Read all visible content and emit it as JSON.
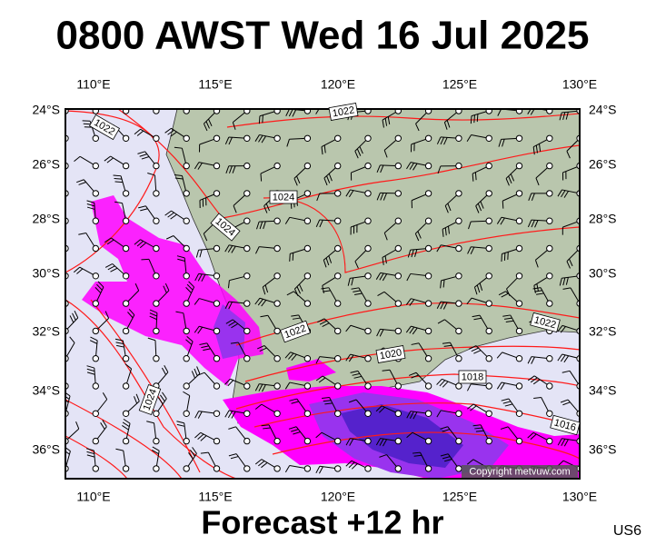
{
  "header": {
    "title": "0800 AWST Wed 16 Jul 2025"
  },
  "map": {
    "lon_labels": [
      "110°E",
      "115°E",
      "120°E",
      "125°E",
      "130°E"
    ],
    "lat_labels": [
      "24°S",
      "26°S",
      "28°S",
      "30°S",
      "32°S",
      "34°S",
      "36°S"
    ],
    "isobar_labels": [
      "1022",
      "1022",
      "1024",
      "1024",
      "1022",
      "1020",
      "1018",
      "1016",
      "1024",
      "1022"
    ],
    "copyright": "Copyright metvuw.com"
  },
  "footer": {
    "forecast": "Forecast +12 hr",
    "code": "US6"
  }
}
